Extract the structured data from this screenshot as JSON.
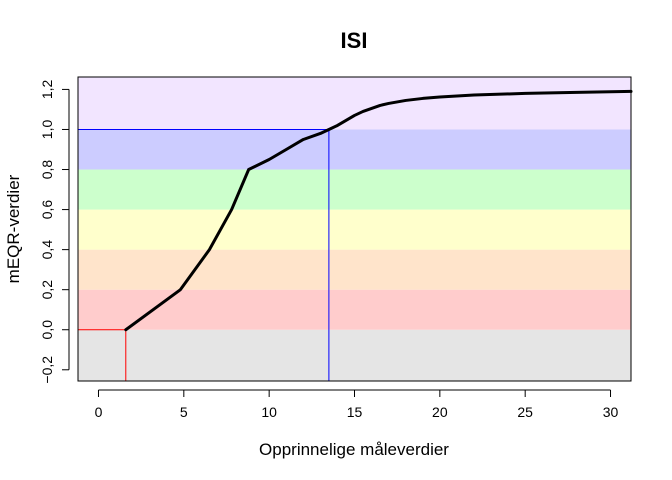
{
  "chart_data": {
    "type": "line",
    "title": "ISI",
    "xlabel": "Opprinnelige måleverdier",
    "ylabel": "mEQR-verdier",
    "xlim": [
      -1.2,
      31.2
    ],
    "ylim": [
      -0.256,
      1.262
    ],
    "x_ticks": [
      0,
      5,
      10,
      15,
      20,
      25,
      30
    ],
    "x_tick_labels": [
      "0",
      "5",
      "10",
      "15",
      "20",
      "25",
      "30"
    ],
    "y_ticks": [
      -0.2,
      0.0,
      0.2,
      0.4,
      0.6,
      0.8,
      1.0,
      1.2
    ],
    "y_tick_labels": [
      "−0,2",
      "0,0",
      "0,2",
      "0,4",
      "0,6",
      "0,8",
      "1,0",
      "1,2"
    ],
    "grid": false,
    "bands": [
      {
        "from": -0.256,
        "to": 0.0,
        "color": "#e5e5e5"
      },
      {
        "from": 0.0,
        "to": 0.2,
        "color": "#ffcccc"
      },
      {
        "from": 0.2,
        "to": 0.4,
        "color": "#ffe4cb"
      },
      {
        "from": 0.4,
        "to": 0.6,
        "color": "#ffffcc"
      },
      {
        "from": 0.6,
        "to": 0.8,
        "color": "#ccffcc"
      },
      {
        "from": 0.8,
        "to": 1.0,
        "color": "#ccccff"
      },
      {
        "from": 1.0,
        "to": 1.262,
        "color": "#f2e5ff"
      }
    ],
    "series": [
      {
        "color": "#000000",
        "x": [
          1.6,
          4.8,
          6.5,
          7.8,
          8.8,
          10.0,
          11.0,
          12.0,
          13.0,
          13.5,
          14.0,
          14.5,
          15.0,
          15.5,
          16.0,
          16.5,
          17.0,
          18.0,
          19.0,
          20.0,
          22.0,
          25.0,
          28.0,
          31.2
        ],
        "y": [
          0.0,
          0.2,
          0.4,
          0.6,
          0.8,
          0.85,
          0.9,
          0.95,
          0.98,
          1.0,
          1.02,
          1.045,
          1.07,
          1.09,
          1.105,
          1.12,
          1.13,
          1.145,
          1.155,
          1.162,
          1.172,
          1.18,
          1.185,
          1.19
        ]
      }
    ],
    "reference_lines": [
      {
        "color": "#ff0000",
        "x": 1.6,
        "y": 0.0
      },
      {
        "color": "#0000ff",
        "x": 13.5,
        "y": 1.0
      }
    ]
  }
}
